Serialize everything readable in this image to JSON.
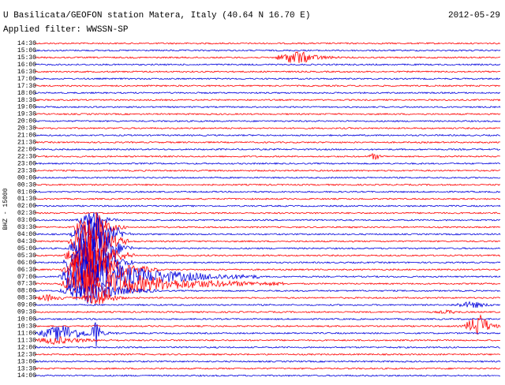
{
  "header": {
    "title": "U Basilicata/GEOFON station Matera, Italy (40.64 N 16.70 E)",
    "date": "2012-05-29",
    "filter": "Applied filter: WWSSN-SP"
  },
  "axis": {
    "label": "BHZ - 15000"
  },
  "rows": [
    "14:30",
    "15:00",
    "15:30",
    "16:00",
    "16:30",
    "17:00",
    "17:30",
    "18:00",
    "18:30",
    "19:00",
    "19:30",
    "20:00",
    "20:30",
    "21:00",
    "21:30",
    "22:00",
    "22:30",
    "23:00",
    "23:30",
    "00:00",
    "00:30",
    "01:00",
    "01:30",
    "02:00",
    "02:30",
    "03:00",
    "03:30",
    "04:00",
    "04:30",
    "05:00",
    "05:30",
    "06:00",
    "06:30",
    "07:00",
    "07:30",
    "08:00",
    "08:30",
    "09:00",
    "09:30",
    "10:00",
    "10:30",
    "11:00",
    "11:30",
    "12:00",
    "12:30",
    "13:00",
    "13:30",
    "14:00"
  ]
}
